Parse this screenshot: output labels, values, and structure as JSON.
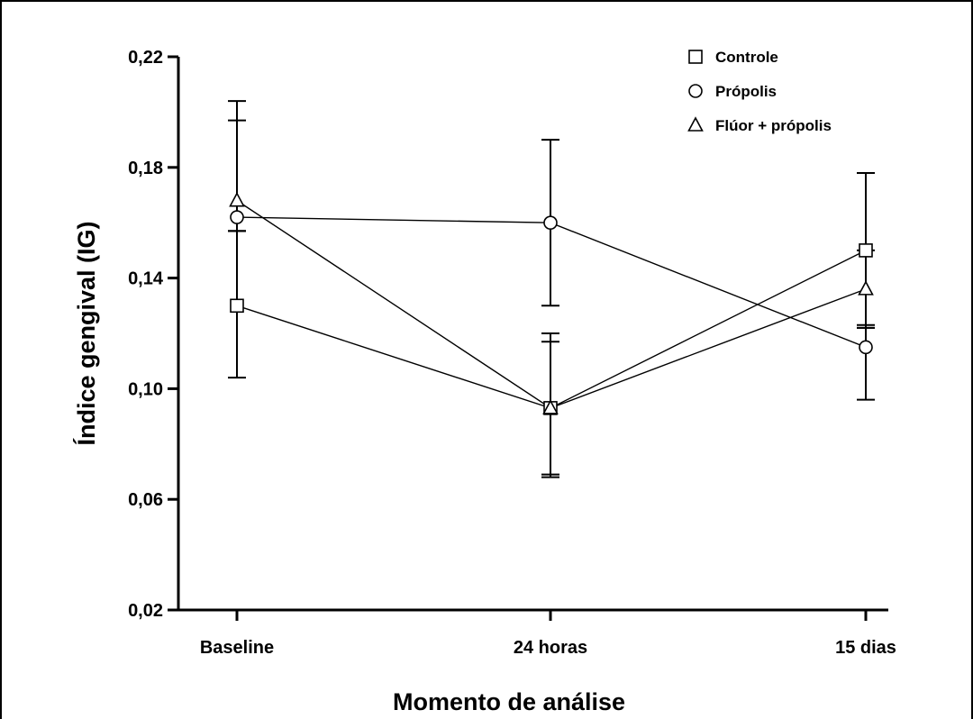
{
  "chart_data": {
    "type": "line",
    "xlabel": "Momento de análise",
    "ylabel": "Índice gengival (IG)",
    "categories": [
      "Baseline",
      "24 horas",
      "15 dias"
    ],
    "ylim": [
      0.02,
      0.22
    ],
    "yticks": [
      0.02,
      0.06,
      0.1,
      0.14,
      0.18,
      0.22
    ],
    "ytick_labels": [
      "0,02",
      "0,06",
      "0,10",
      "0,14",
      "0,18",
      "0,22"
    ],
    "legend_position": "top-right",
    "grid": false,
    "series": [
      {
        "name": "Controle",
        "marker": "square",
        "values": [
          0.13,
          0.093,
          0.15
        ],
        "error_low": [
          0.104,
          0.068,
          0.123
        ],
        "error_high": [
          0.157,
          0.117,
          0.178
        ]
      },
      {
        "name": "Própolis",
        "marker": "circle",
        "values": [
          0.162,
          0.16,
          0.115
        ],
        "error_low": [
          0.157,
          0.13,
          0.096
        ],
        "error_high": [
          0.197,
          0.19,
          0.122
        ]
      },
      {
        "name": "Flúor + própolis",
        "marker": "triangle",
        "values": [
          0.168,
          0.093,
          0.136
        ],
        "error_low": [
          0.157,
          0.069,
          0.122
        ],
        "error_high": [
          0.204,
          0.12,
          0.15
        ]
      }
    ]
  }
}
